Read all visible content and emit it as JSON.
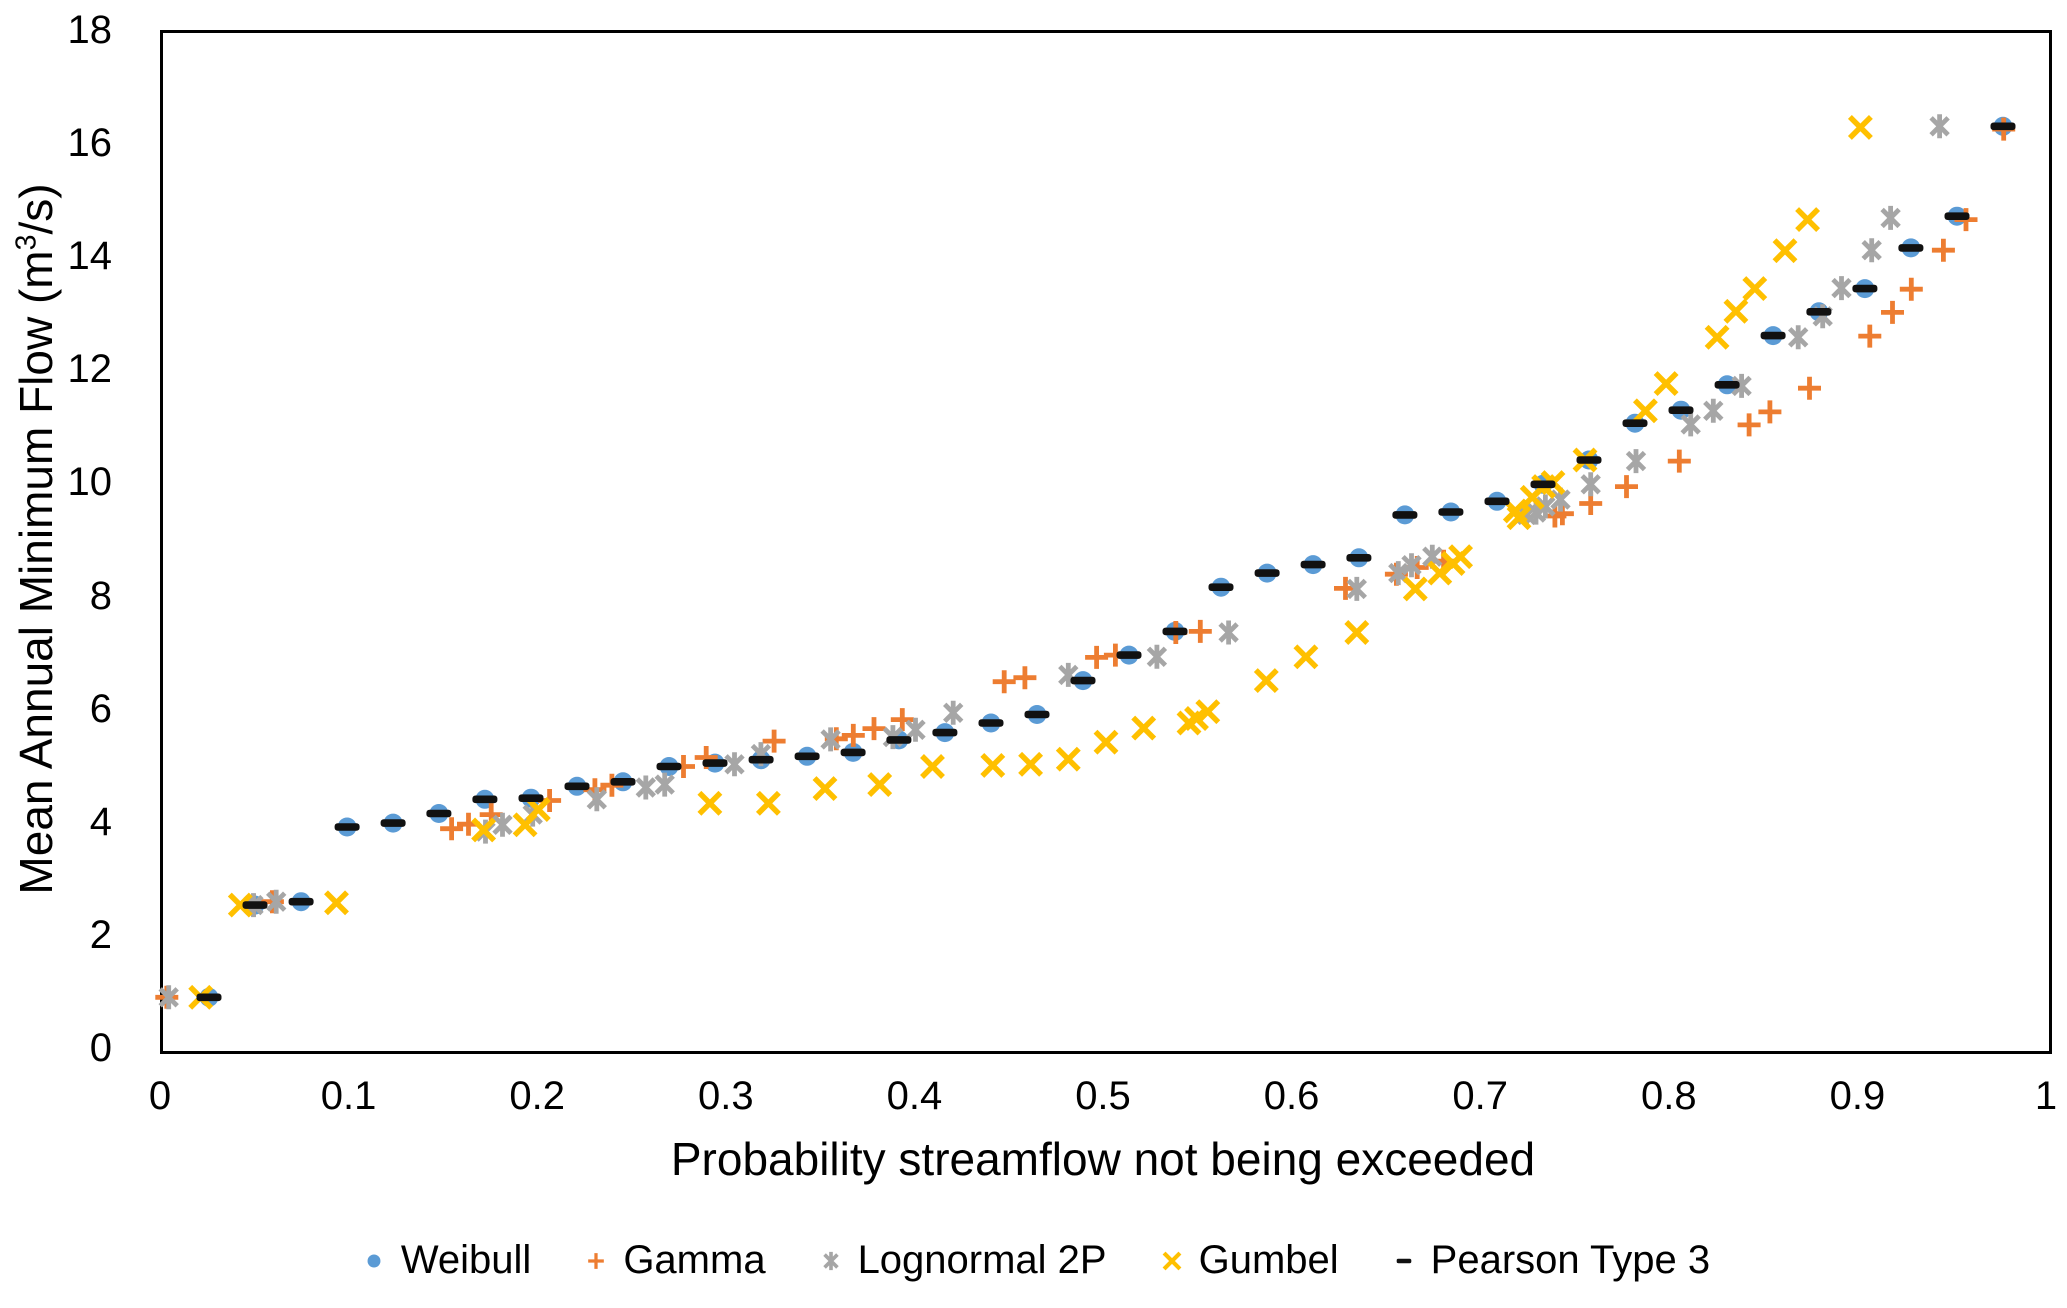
{
  "chart_data": {
    "type": "scatter",
    "title": "",
    "xlabel": "Probability streamflow not being exceeded",
    "ylabel": "Mean Annual Minimum Flow (m³/s)",
    "ylabel_parts": {
      "pre": "Mean Annual Minimum Flow (m",
      "sup": "3",
      "post": "/s)"
    },
    "xlim": [
      0,
      1
    ],
    "ylim": [
      0,
      18
    ],
    "x_tick_labels": [
      "0",
      "0.1",
      "0.2",
      "0.3",
      "0.4",
      "0.5",
      "0.6",
      "0.7",
      "0.8",
      "0.9",
      "1"
    ],
    "y_tick_labels": [
      "0",
      "2",
      "4",
      "6",
      "8",
      "10",
      "12",
      "14",
      "16",
      "18"
    ],
    "grid": false,
    "legend_position": "bottom",
    "axis_color": "#000000",
    "background_color": "#ffffff",
    "series": [
      {
        "name": "Weibull",
        "marker": "circle",
        "color": "#5B9BD5",
        "points": [
          [
            0.0244,
            0.95
          ],
          [
            0.0488,
            2.58
          ],
          [
            0.0732,
            2.64
          ],
          [
            0.0976,
            3.96
          ],
          [
            0.122,
            4.03
          ],
          [
            0.1463,
            4.2
          ],
          [
            0.1707,
            4.45
          ],
          [
            0.1951,
            4.47
          ],
          [
            0.2195,
            4.68
          ],
          [
            0.2439,
            4.76
          ],
          [
            0.2683,
            5.03
          ],
          [
            0.2927,
            5.09
          ],
          [
            0.3171,
            5.15
          ],
          [
            0.3415,
            5.21
          ],
          [
            0.3659,
            5.28
          ],
          [
            0.3902,
            5.5
          ],
          [
            0.4146,
            5.63
          ],
          [
            0.439,
            5.8
          ],
          [
            0.4634,
            5.95
          ],
          [
            0.4878,
            6.55
          ],
          [
            0.5122,
            7.0
          ],
          [
            0.5366,
            7.42
          ],
          [
            0.561,
            8.2
          ],
          [
            0.5854,
            8.45
          ],
          [
            0.6098,
            8.6
          ],
          [
            0.6341,
            8.72
          ],
          [
            0.6585,
            9.48
          ],
          [
            0.6829,
            9.53
          ],
          [
            0.7073,
            9.72
          ],
          [
            0.7317,
            10.02
          ],
          [
            0.7561,
            10.45
          ],
          [
            0.7805,
            11.1
          ],
          [
            0.8049,
            11.33
          ],
          [
            0.8293,
            11.78
          ],
          [
            0.8537,
            12.65
          ],
          [
            0.878,
            13.07
          ],
          [
            0.9024,
            13.48
          ],
          [
            0.9268,
            14.2
          ],
          [
            0.9512,
            14.76
          ],
          [
            0.9756,
            16.35
          ]
        ]
      },
      {
        "name": "Gamma",
        "marker": "plus",
        "color": "#ED7D31",
        "points": [
          [
            0.002,
            0.95
          ],
          [
            0.048,
            2.58
          ],
          [
            0.058,
            2.64
          ],
          [
            0.153,
            3.93
          ],
          [
            0.162,
            4.01
          ],
          [
            0.174,
            4.18
          ],
          [
            0.205,
            4.43
          ],
          [
            0.229,
            4.62
          ],
          [
            0.238,
            4.7
          ],
          [
            0.276,
            5.03
          ],
          [
            0.288,
            5.19
          ],
          [
            0.324,
            5.48
          ],
          [
            0.357,
            5.52
          ],
          [
            0.366,
            5.58
          ],
          [
            0.377,
            5.7
          ],
          [
            0.392,
            5.86
          ],
          [
            0.446,
            6.53
          ],
          [
            0.457,
            6.6
          ],
          [
            0.495,
            6.96
          ],
          [
            0.505,
            7.0
          ],
          [
            0.537,
            7.4
          ],
          [
            0.55,
            7.42
          ],
          [
            0.627,
            8.18
          ],
          [
            0.654,
            8.43
          ],
          [
            0.665,
            8.55
          ],
          [
            0.679,
            8.66
          ],
          [
            0.738,
            9.46
          ],
          [
            0.742,
            9.5
          ],
          [
            0.757,
            9.68
          ],
          [
            0.776,
            9.98
          ],
          [
            0.804,
            10.43
          ],
          [
            0.841,
            11.07
          ],
          [
            0.852,
            11.3
          ],
          [
            0.873,
            11.72
          ],
          [
            0.905,
            12.64
          ],
          [
            0.917,
            13.06
          ],
          [
            0.927,
            13.47
          ],
          [
            0.944,
            14.16
          ],
          [
            0.956,
            14.7
          ],
          [
            0.976,
            16.3
          ]
        ]
      },
      {
        "name": "Lognormal 2P",
        "marker": "asterisk",
        "color": "#A6A6A6",
        "points": [
          [
            0.003,
            0.95
          ],
          [
            0.048,
            2.58
          ],
          [
            0.06,
            2.64
          ],
          [
            0.171,
            3.88
          ],
          [
            0.18,
            4.0
          ],
          [
            0.196,
            4.18
          ],
          [
            0.23,
            4.45
          ],
          [
            0.256,
            4.66
          ],
          [
            0.266,
            4.71
          ],
          [
            0.303,
            5.07
          ],
          [
            0.317,
            5.25
          ],
          [
            0.354,
            5.51
          ],
          [
            0.387,
            5.55
          ],
          [
            0.399,
            5.68
          ],
          [
            0.419,
            5.98
          ],
          [
            0.48,
            6.65
          ],
          [
            0.527,
            6.97
          ],
          [
            0.565,
            7.4
          ],
          [
            0.633,
            8.17
          ],
          [
            0.655,
            8.45
          ],
          [
            0.662,
            8.59
          ],
          [
            0.673,
            8.74
          ],
          [
            0.723,
            9.48
          ],
          [
            0.728,
            9.52
          ],
          [
            0.733,
            9.63
          ],
          [
            0.741,
            9.75
          ],
          [
            0.757,
            10.02
          ],
          [
            0.781,
            10.43
          ],
          [
            0.81,
            11.08
          ],
          [
            0.822,
            11.32
          ],
          [
            0.837,
            11.76
          ],
          [
            0.867,
            12.62
          ],
          [
            0.88,
            12.99
          ],
          [
            0.89,
            13.49
          ],
          [
            0.906,
            14.16
          ],
          [
            0.916,
            14.73
          ],
          [
            0.942,
            16.35
          ]
        ]
      },
      {
        "name": "Gumbel",
        "marker": "x",
        "color": "#FFC000",
        "points": [
          [
            0.02,
            0.95
          ],
          [
            0.041,
            2.58
          ],
          [
            0.092,
            2.62
          ],
          [
            0.17,
            3.91
          ],
          [
            0.192,
            4.0
          ],
          [
            0.199,
            4.27
          ],
          [
            0.29,
            4.38
          ],
          [
            0.321,
            4.38
          ],
          [
            0.351,
            4.64
          ],
          [
            0.38,
            4.71
          ],
          [
            0.408,
            5.03
          ],
          [
            0.44,
            5.05
          ],
          [
            0.46,
            5.07
          ],
          [
            0.48,
            5.16
          ],
          [
            0.5,
            5.46
          ],
          [
            0.52,
            5.71
          ],
          [
            0.544,
            5.8
          ],
          [
            0.548,
            5.88
          ],
          [
            0.554,
            6.0
          ],
          [
            0.585,
            6.55
          ],
          [
            0.606,
            6.97
          ],
          [
            0.633,
            7.4
          ],
          [
            0.664,
            8.17
          ],
          [
            0.677,
            8.45
          ],
          [
            0.684,
            8.62
          ],
          [
            0.688,
            8.74
          ],
          [
            0.717,
            9.55
          ],
          [
            0.719,
            9.43
          ],
          [
            0.726,
            9.79
          ],
          [
            0.732,
            9.98
          ],
          [
            0.737,
            10.05
          ],
          [
            0.754,
            10.45
          ],
          [
            0.786,
            11.32
          ],
          [
            0.797,
            11.8
          ],
          [
            0.824,
            12.62
          ],
          [
            0.834,
            13.08
          ],
          [
            0.844,
            13.48
          ],
          [
            0.86,
            14.15
          ],
          [
            0.872,
            14.7
          ],
          [
            0.9,
            16.33
          ]
        ]
      },
      {
        "name": "Pearson Type 3",
        "marker": "dash",
        "color": "#111111",
        "points": [
          [
            0.0244,
            0.95
          ],
          [
            0.0488,
            2.58
          ],
          [
            0.0732,
            2.64
          ],
          [
            0.0976,
            3.96
          ],
          [
            0.122,
            4.03
          ],
          [
            0.1463,
            4.2
          ],
          [
            0.1707,
            4.45
          ],
          [
            0.1951,
            4.47
          ],
          [
            0.2195,
            4.68
          ],
          [
            0.2439,
            4.76
          ],
          [
            0.2683,
            5.03
          ],
          [
            0.2927,
            5.09
          ],
          [
            0.3171,
            5.15
          ],
          [
            0.3415,
            5.21
          ],
          [
            0.3659,
            5.28
          ],
          [
            0.3902,
            5.5
          ],
          [
            0.4146,
            5.63
          ],
          [
            0.439,
            5.8
          ],
          [
            0.4634,
            5.95
          ],
          [
            0.4878,
            6.55
          ],
          [
            0.5122,
            7.0
          ],
          [
            0.5366,
            7.42
          ],
          [
            0.561,
            8.2
          ],
          [
            0.5854,
            8.45
          ],
          [
            0.6098,
            8.6
          ],
          [
            0.6341,
            8.72
          ],
          [
            0.6585,
            9.48
          ],
          [
            0.6829,
            9.53
          ],
          [
            0.7073,
            9.72
          ],
          [
            0.7317,
            10.02
          ],
          [
            0.7561,
            10.45
          ],
          [
            0.7805,
            11.1
          ],
          [
            0.8049,
            11.33
          ],
          [
            0.8293,
            11.78
          ],
          [
            0.8537,
            12.65
          ],
          [
            0.878,
            13.07
          ],
          [
            0.9024,
            13.48
          ],
          [
            0.9268,
            14.2
          ],
          [
            0.9512,
            14.76
          ],
          [
            0.9756,
            16.35
          ]
        ]
      }
    ]
  }
}
